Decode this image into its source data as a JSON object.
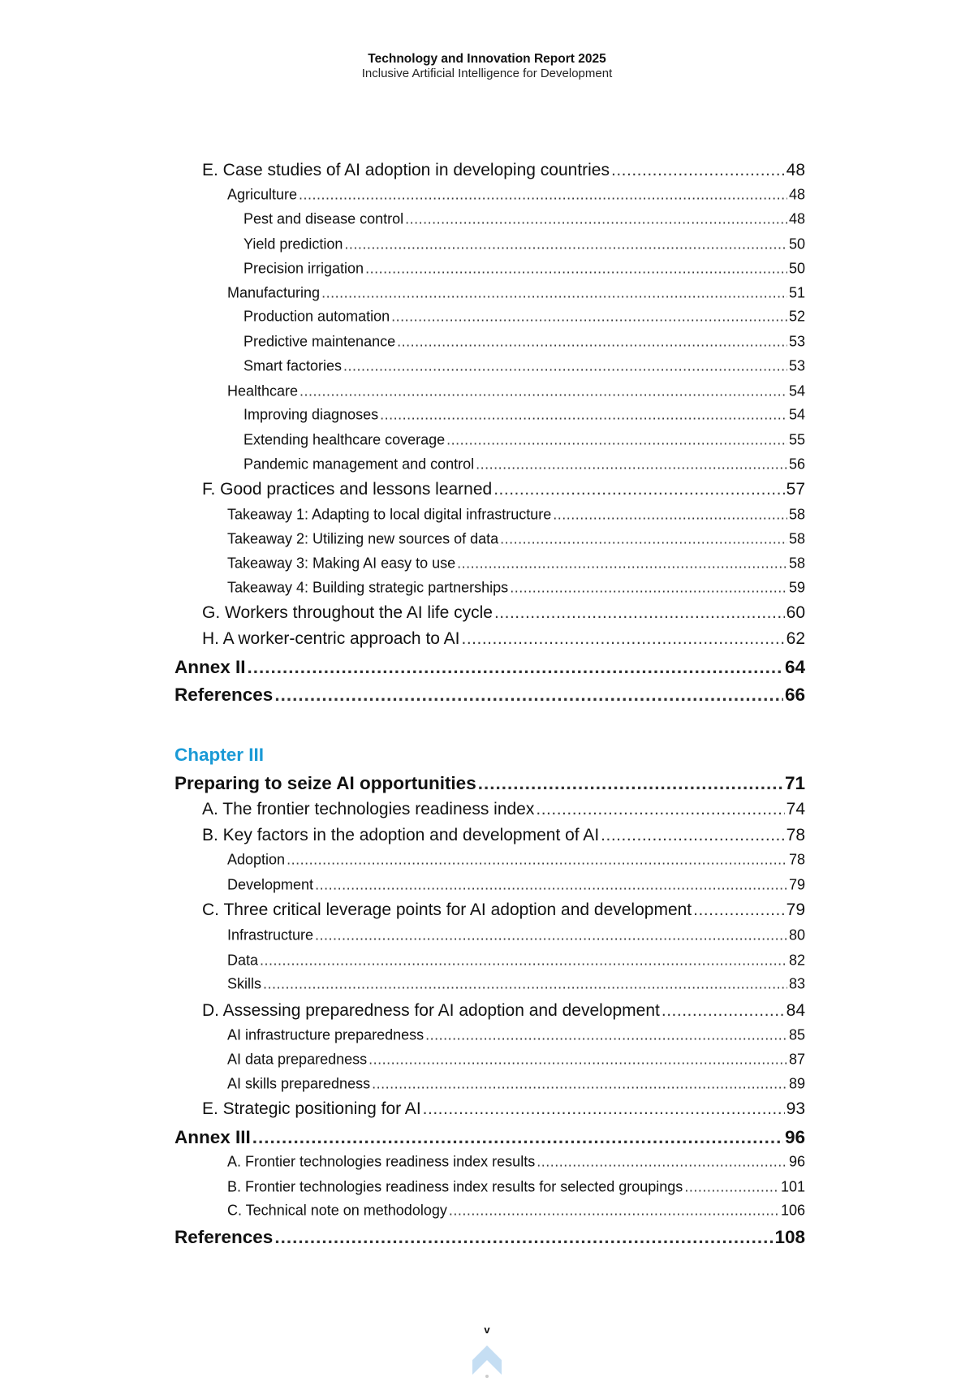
{
  "header": {
    "title": "Technology and Innovation Report 2025",
    "subtitle": "Inclusive Artificial Intelligence for Development"
  },
  "chapter_heading": "Chapter III",
  "toc": [
    {
      "level": 1,
      "label": "E. Case studies of AI adoption in developing countries",
      "page": "48"
    },
    {
      "level": 2,
      "label": "Agriculture",
      "page": "48"
    },
    {
      "level": 3,
      "label": "Pest and disease control",
      "page": "48"
    },
    {
      "level": 3,
      "label": "Yield prediction",
      "page": "50"
    },
    {
      "level": 3,
      "label": "Precision irrigation",
      "page": "50"
    },
    {
      "level": 2,
      "label": "Manufacturing",
      "page": "51"
    },
    {
      "level": 3,
      "label": "Production automation",
      "page": "52"
    },
    {
      "level": 3,
      "label": "Predictive maintenance",
      "page": "53"
    },
    {
      "level": 3,
      "label": "Smart factories",
      "page": "53"
    },
    {
      "level": 2,
      "label": "Healthcare",
      "page": "54"
    },
    {
      "level": 3,
      "label": "Improving diagnoses",
      "page": "54"
    },
    {
      "level": 3,
      "label": "Extending healthcare coverage",
      "page": "55"
    },
    {
      "level": 3,
      "label": "Pandemic management and control",
      "page": "56"
    },
    {
      "level": 1,
      "label": "F. Good practices and lessons learned",
      "page": "57"
    },
    {
      "level": 2,
      "label": "Takeaway 1: Adapting to local digital infrastructure",
      "page": "58"
    },
    {
      "level": 2,
      "label": "Takeaway 2: Utilizing new sources of data",
      "page": "58"
    },
    {
      "level": 2,
      "label": "Takeaway 3: Making AI easy to use",
      "page": "58"
    },
    {
      "level": 2,
      "label": "Takeaway 4: Building strategic partnerships",
      "page": "59"
    },
    {
      "level": 1,
      "label": "G. Workers throughout the AI life cycle",
      "page": "60"
    },
    {
      "level": 1,
      "label": "H. A worker-centric approach to AI",
      "page": "62"
    },
    {
      "level": 0,
      "label": "Annex II",
      "page": "64"
    },
    {
      "level": 0,
      "label": "References",
      "page": "66"
    },
    {
      "level": 0,
      "label": "Preparing to seize AI opportunities",
      "page": "71"
    },
    {
      "level": 1,
      "label": "A. The frontier technologies readiness index",
      "page": "74"
    },
    {
      "level": 1,
      "label": "B. Key factors in the adoption and development of AI",
      "page": "78"
    },
    {
      "level": 2,
      "label": "Adoption",
      "page": "78"
    },
    {
      "level": 2,
      "label": "Development",
      "page": "79"
    },
    {
      "level": 1,
      "label": "C. Three critical leverage points for AI adoption and development",
      "page": "79"
    },
    {
      "level": 2,
      "label": "Infrastructure",
      "page": "80"
    },
    {
      "level": 2,
      "label": "Data",
      "page": "82"
    },
    {
      "level": 2,
      "label": "Skills",
      "page": "83"
    },
    {
      "level": 1,
      "label": "D. Assessing preparedness for AI adoption and development",
      "page": "84"
    },
    {
      "level": 2,
      "label": "AI infrastructure preparedness",
      "page": "85"
    },
    {
      "level": 2,
      "label": "AI data preparedness",
      "page": "87"
    },
    {
      "level": 2,
      "label": "AI skills preparedness",
      "page": "89"
    },
    {
      "level": 1,
      "label": "E. Strategic positioning for AI",
      "page": "93"
    },
    {
      "level": 0,
      "label": "Annex III",
      "page": "96"
    },
    {
      "level": 2,
      "label": "A. Frontier technologies readiness index results",
      "page": "96"
    },
    {
      "level": 2,
      "label": "B. Frontier technologies readiness index results for selected groupings",
      "page": "101"
    },
    {
      "level": 2,
      "label": "C. Technical note on methodology",
      "page": "106"
    },
    {
      "level": 0,
      "label": "References",
      "page": "108"
    }
  ],
  "page_number": "v",
  "scroll_top_icon": "chevron-up-icon",
  "colors": {
    "chapter_heading": "#1a9ad6",
    "scroll_icon": "#c5def3"
  }
}
